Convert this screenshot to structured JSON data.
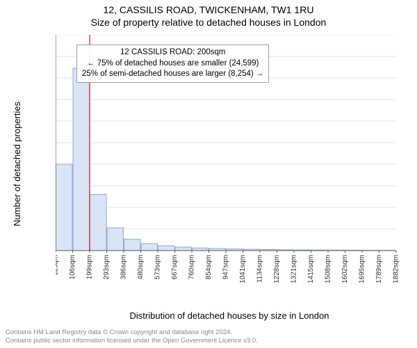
{
  "title_line1": "12, CASSILIS ROAD, TWICKENHAM, TW1 1RU",
  "title_line2": "Size of property relative to detached houses in London",
  "xlabel": "Distribution of detached houses by size in London",
  "ylabel": "Number of detached properties",
  "chart": {
    "type": "histogram",
    "background_color": "#ffffff",
    "grid_color": "#e6e6e6",
    "axis_color": "#555555",
    "bar_fill": "#d9e4f4",
    "bar_edge": "#91a9d4",
    "marker_line_color": "#d94545",
    "ylim": [
      0,
      20000
    ],
    "ytick_step": 2000,
    "yticks": [
      0,
      2000,
      4000,
      6000,
      8000,
      10000,
      12000,
      14000,
      16000,
      18000,
      20000
    ],
    "xticks": [
      "12sqm",
      "106sqm",
      "199sqm",
      "293sqm",
      "386sqm",
      "480sqm",
      "573sqm",
      "667sqm",
      "760sqm",
      "854sqm",
      "947sqm",
      "1041sqm",
      "1134sqm",
      "1228sqm",
      "1321sqm",
      "1415sqm",
      "1508sqm",
      "1602sqm",
      "1695sqm",
      "1789sqm",
      "1882sqm"
    ],
    "bars": [
      8000,
      16900,
      5200,
      2100,
      1050,
      650,
      450,
      320,
      240,
      190,
      150,
      120,
      95,
      75,
      60,
      48,
      38,
      30,
      24,
      18
    ],
    "marker_at_bin_index": 2,
    "tick_fontsize": 10
  },
  "infobox": {
    "line1": "12 CASSILIS ROAD: 200sqm",
    "line2": "← 75% of detached houses are smaller (24,599)",
    "line3": "25% of semi-detached houses are larger (8,254) →"
  },
  "footer": {
    "line1": "Contains HM Land Registry data © Crown copyright and database right 2024.",
    "line2": "Contains public sector information licensed under the Open Government Licence v3.0."
  }
}
